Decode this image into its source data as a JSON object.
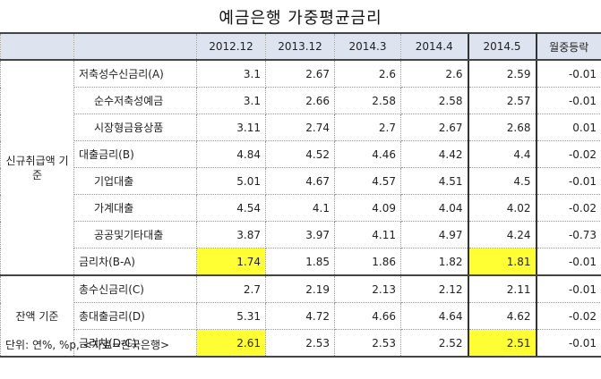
{
  "title": "예금은행 가중평균금리",
  "columns": [
    "2012.12",
    "2013.12",
    "2014.3",
    "2014.4",
    "2014.5",
    "월중등락"
  ],
  "groups": [
    {
      "label": "신규취급액 기준",
      "rows": [
        {
          "label": "저축성수신금리(A)",
          "indent": false,
          "values": [
            "3.1",
            "2.67",
            "2.6",
            "2.6",
            "2.59",
            "-0.01"
          ],
          "highlight": []
        },
        {
          "label": "순수저축성예금",
          "indent": true,
          "values": [
            "3.1",
            "2.66",
            "2.58",
            "2.58",
            "2.57",
            "-0.01"
          ],
          "highlight": []
        },
        {
          "label": "시장형금융상품",
          "indent": true,
          "values": [
            "3.11",
            "2.74",
            "2.7",
            "2.67",
            "2.68",
            "0.01"
          ],
          "highlight": []
        },
        {
          "label": "대출금리(B)",
          "indent": false,
          "values": [
            "4.84",
            "4.52",
            "4.46",
            "4.42",
            "4.4",
            "-0.02"
          ],
          "highlight": []
        },
        {
          "label": "기업대출",
          "indent": true,
          "values": [
            "5.01",
            "4.67",
            "4.57",
            "4.51",
            "4.5",
            "-0.01"
          ],
          "highlight": []
        },
        {
          "label": "가계대출",
          "indent": true,
          "values": [
            "4.54",
            "4.1",
            "4.09",
            "4.04",
            "4.02",
            "-0.02"
          ],
          "highlight": []
        },
        {
          "label": "공공및기타대출",
          "indent": true,
          "values": [
            "3.87",
            "3.97",
            "4.11",
            "4.97",
            "4.24",
            "-0.73"
          ],
          "highlight": []
        },
        {
          "label": "금리차(B-A)",
          "indent": false,
          "values": [
            "1.74",
            "1.85",
            "1.86",
            "1.82",
            "1.81",
            "-0.01"
          ],
          "highlight": [
            0,
            4
          ]
        }
      ]
    },
    {
      "label": "잔액 기준",
      "rows": [
        {
          "label": "총수신금리(C)",
          "indent": false,
          "values": [
            "2.7",
            "2.19",
            "2.13",
            "2.12",
            "2.11",
            "-0.01"
          ],
          "highlight": []
        },
        {
          "label": "총대출금리(D)",
          "indent": false,
          "values": [
            "5.31",
            "4.72",
            "4.66",
            "4.64",
            "4.62",
            "-0.02"
          ],
          "highlight": []
        },
        {
          "label": "금리차(D-C)",
          "indent": false,
          "values": [
            "2.61",
            "2.53",
            "2.53",
            "2.52",
            "2.51",
            "-0.01"
          ],
          "highlight": [
            0,
            4
          ]
        }
      ]
    }
  ],
  "note": "단위: 연%, %p, <자료=한국은행>",
  "colors": {
    "header_bg": "#dde3ef",
    "highlight": "#ffff33"
  }
}
